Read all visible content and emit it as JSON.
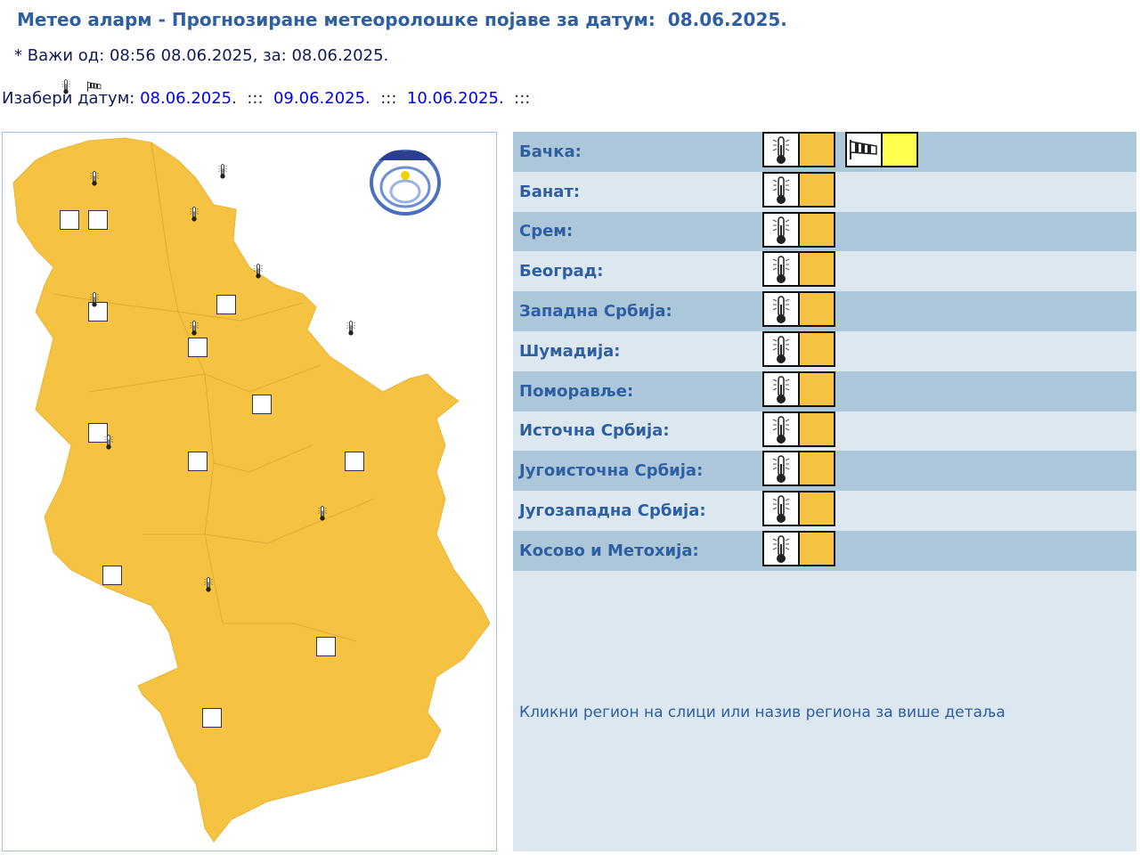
{
  "header": {
    "title": "Метео аларм - Прогнозиране метеоролошке појаве за датум:  08.06.2025.",
    "valid": "* Важи од: 08:56 08.06.2025, за: 08.06.2025."
  },
  "date_picker": {
    "label": "Изабери датум:",
    "dates": [
      "08.06.2025.",
      "09.06.2025.",
      "10.06.2025."
    ],
    "separator": ":::"
  },
  "logo": {
    "text": "РХМЗ СРБИЈЕ"
  },
  "colors": {
    "orange": "#f5c242",
    "yellow": "#ffff4d",
    "map_fill": "#f5c242"
  },
  "regions": [
    {
      "name": "Бачка:",
      "warnings": [
        {
          "icon": "thermometer-icon",
          "level": "orange"
        },
        {
          "icon": "windsock-icon",
          "level": "yellow"
        }
      ]
    },
    {
      "name": "Банат:",
      "warnings": [
        {
          "icon": "thermometer-icon",
          "level": "orange"
        }
      ]
    },
    {
      "name": "Срем:",
      "warnings": [
        {
          "icon": "thermometer-icon",
          "level": "orange"
        }
      ]
    },
    {
      "name": "Београд:",
      "warnings": [
        {
          "icon": "thermometer-icon",
          "level": "orange"
        }
      ]
    },
    {
      "name": "Западна Србија:",
      "warnings": [
        {
          "icon": "thermometer-icon",
          "level": "orange"
        }
      ]
    },
    {
      "name": "Шумадија:",
      "warnings": [
        {
          "icon": "thermometer-icon",
          "level": "orange"
        }
      ]
    },
    {
      "name": "Поморавље:",
      "warnings": [
        {
          "icon": "thermometer-icon",
          "level": "orange"
        }
      ]
    },
    {
      "name": "Источна Србија:",
      "warnings": [
        {
          "icon": "thermometer-icon",
          "level": "orange"
        }
      ]
    },
    {
      "name": "Југоисточна Србија:",
      "warnings": [
        {
          "icon": "thermometer-icon",
          "level": "orange"
        }
      ]
    },
    {
      "name": "Југозападна Србија:",
      "warnings": [
        {
          "icon": "thermometer-icon",
          "level": "orange"
        }
      ]
    },
    {
      "name": "Косово и Метохија:",
      "warnings": [
        {
          "icon": "thermometer-icon",
          "level": "orange"
        }
      ]
    }
  ],
  "hint": "Кликни регион на слици или назив региона за више детаља"
}
